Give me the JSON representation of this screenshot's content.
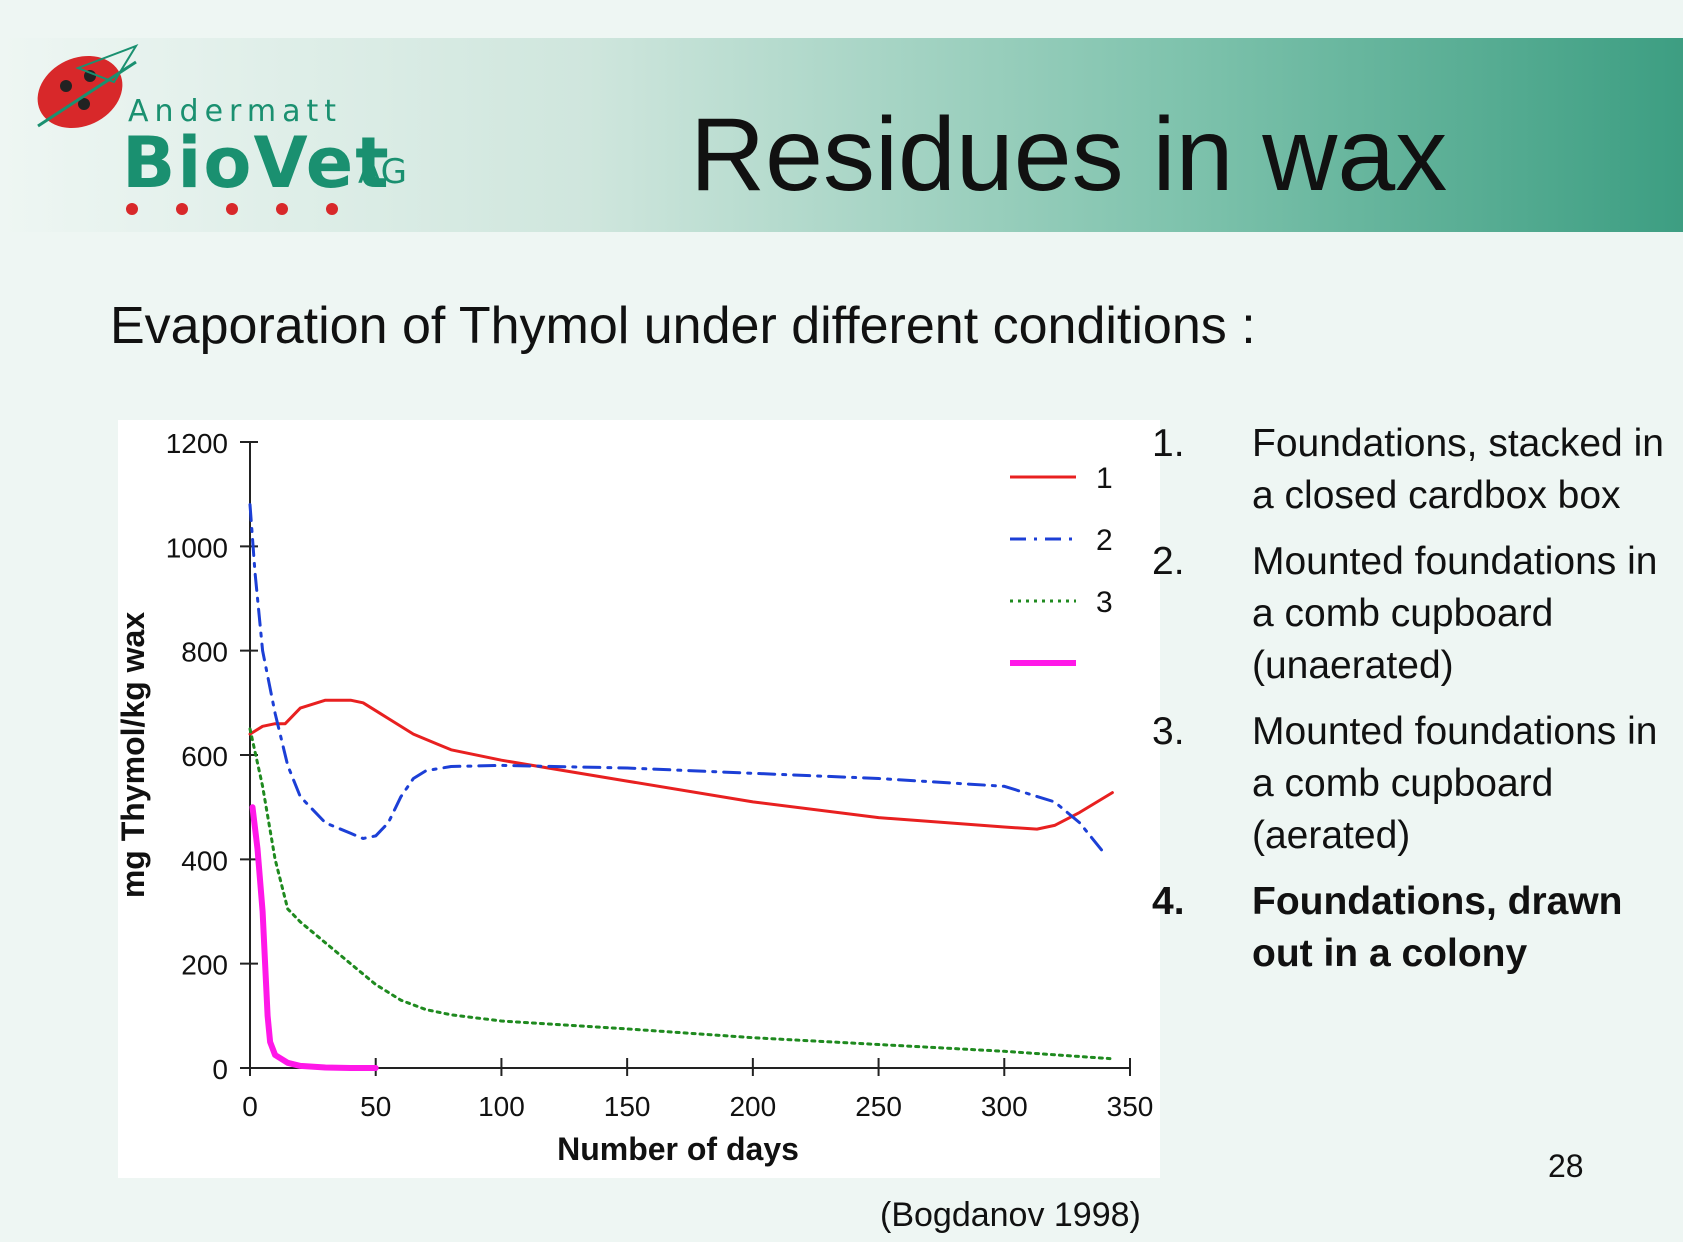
{
  "header": {
    "title": "Residues in wax",
    "logo": {
      "line1": "Andermatt",
      "line2": "BioVet",
      "line3": "AG"
    }
  },
  "subtitle": "Evaporation of Thymol under different conditions :",
  "legend_list": [
    {
      "num": "1.",
      "text": "Foundations, stacked in a closed cardbox box",
      "bold": false
    },
    {
      "num": "2.",
      "text": "Mounted foundations in a comb cupboard (unaerated)",
      "bold": false
    },
    {
      "num": "3.",
      "text": "Mounted foundations in a comb cupboard (aerated)",
      "bold": false
    },
    {
      "num": "4.",
      "text": "Foundations, drawn out in a colony",
      "bold": true
    }
  ],
  "source": "(Bogdanov 1998)",
  "page_number": "28",
  "colors": {
    "series1": "#e82020",
    "series2": "#1c3fd6",
    "series3": "#1f8a1f",
    "series4": "#ff18e8"
  },
  "chart_data": {
    "type": "line",
    "xlabel": "Number of days",
    "ylabel": "mg Thymol/kg wax",
    "xlim": [
      0,
      350
    ],
    "ylim": [
      0,
      1200
    ],
    "xticks": [
      0,
      50,
      100,
      150,
      200,
      250,
      300,
      350
    ],
    "yticks": [
      0,
      200,
      400,
      600,
      800,
      1000,
      1200
    ],
    "legend_position": "top-right",
    "series": [
      {
        "name": "1",
        "color": "#e82020",
        "style": "solid",
        "width": 3,
        "x": [
          0,
          5,
          10,
          14,
          20,
          30,
          40,
          45,
          55,
          65,
          75,
          80,
          100,
          150,
          200,
          250,
          300,
          313,
          320,
          330,
          343
        ],
        "y": [
          640,
          655,
          660,
          660,
          690,
          705,
          705,
          700,
          670,
          640,
          620,
          610,
          590,
          550,
          510,
          480,
          462,
          458,
          465,
          490,
          528
        ]
      },
      {
        "name": "2",
        "color": "#1c3fd6",
        "style": "dashdot",
        "width": 3,
        "x": [
          0,
          2,
          5,
          10,
          15,
          20,
          30,
          40,
          45,
          50,
          55,
          60,
          65,
          70,
          80,
          100,
          150,
          200,
          250,
          300,
          320,
          330,
          340
        ],
        "y": [
          1080,
          950,
          800,
          680,
          580,
          520,
          470,
          450,
          440,
          445,
          470,
          520,
          555,
          570,
          578,
          580,
          575,
          565,
          555,
          540,
          510,
          470,
          410
        ]
      },
      {
        "name": "3",
        "color": "#1f8a1f",
        "style": "dotted",
        "width": 3,
        "x": [
          0,
          5,
          10,
          15,
          20,
          30,
          40,
          50,
          60,
          70,
          80,
          100,
          150,
          200,
          250,
          300,
          342
        ],
        "y": [
          650,
          540,
          400,
          305,
          280,
          240,
          200,
          160,
          130,
          112,
          102,
          90,
          75,
          58,
          45,
          32,
          18
        ]
      },
      {
        "name": "",
        "color": "#ff18e8",
        "style": "solid",
        "width": 6,
        "x": [
          1,
          3,
          5,
          6,
          7,
          8,
          10,
          15,
          20,
          30,
          40,
          50
        ],
        "y": [
          500,
          420,
          300,
          200,
          100,
          50,
          25,
          10,
          4,
          1,
          0,
          0
        ]
      }
    ]
  }
}
